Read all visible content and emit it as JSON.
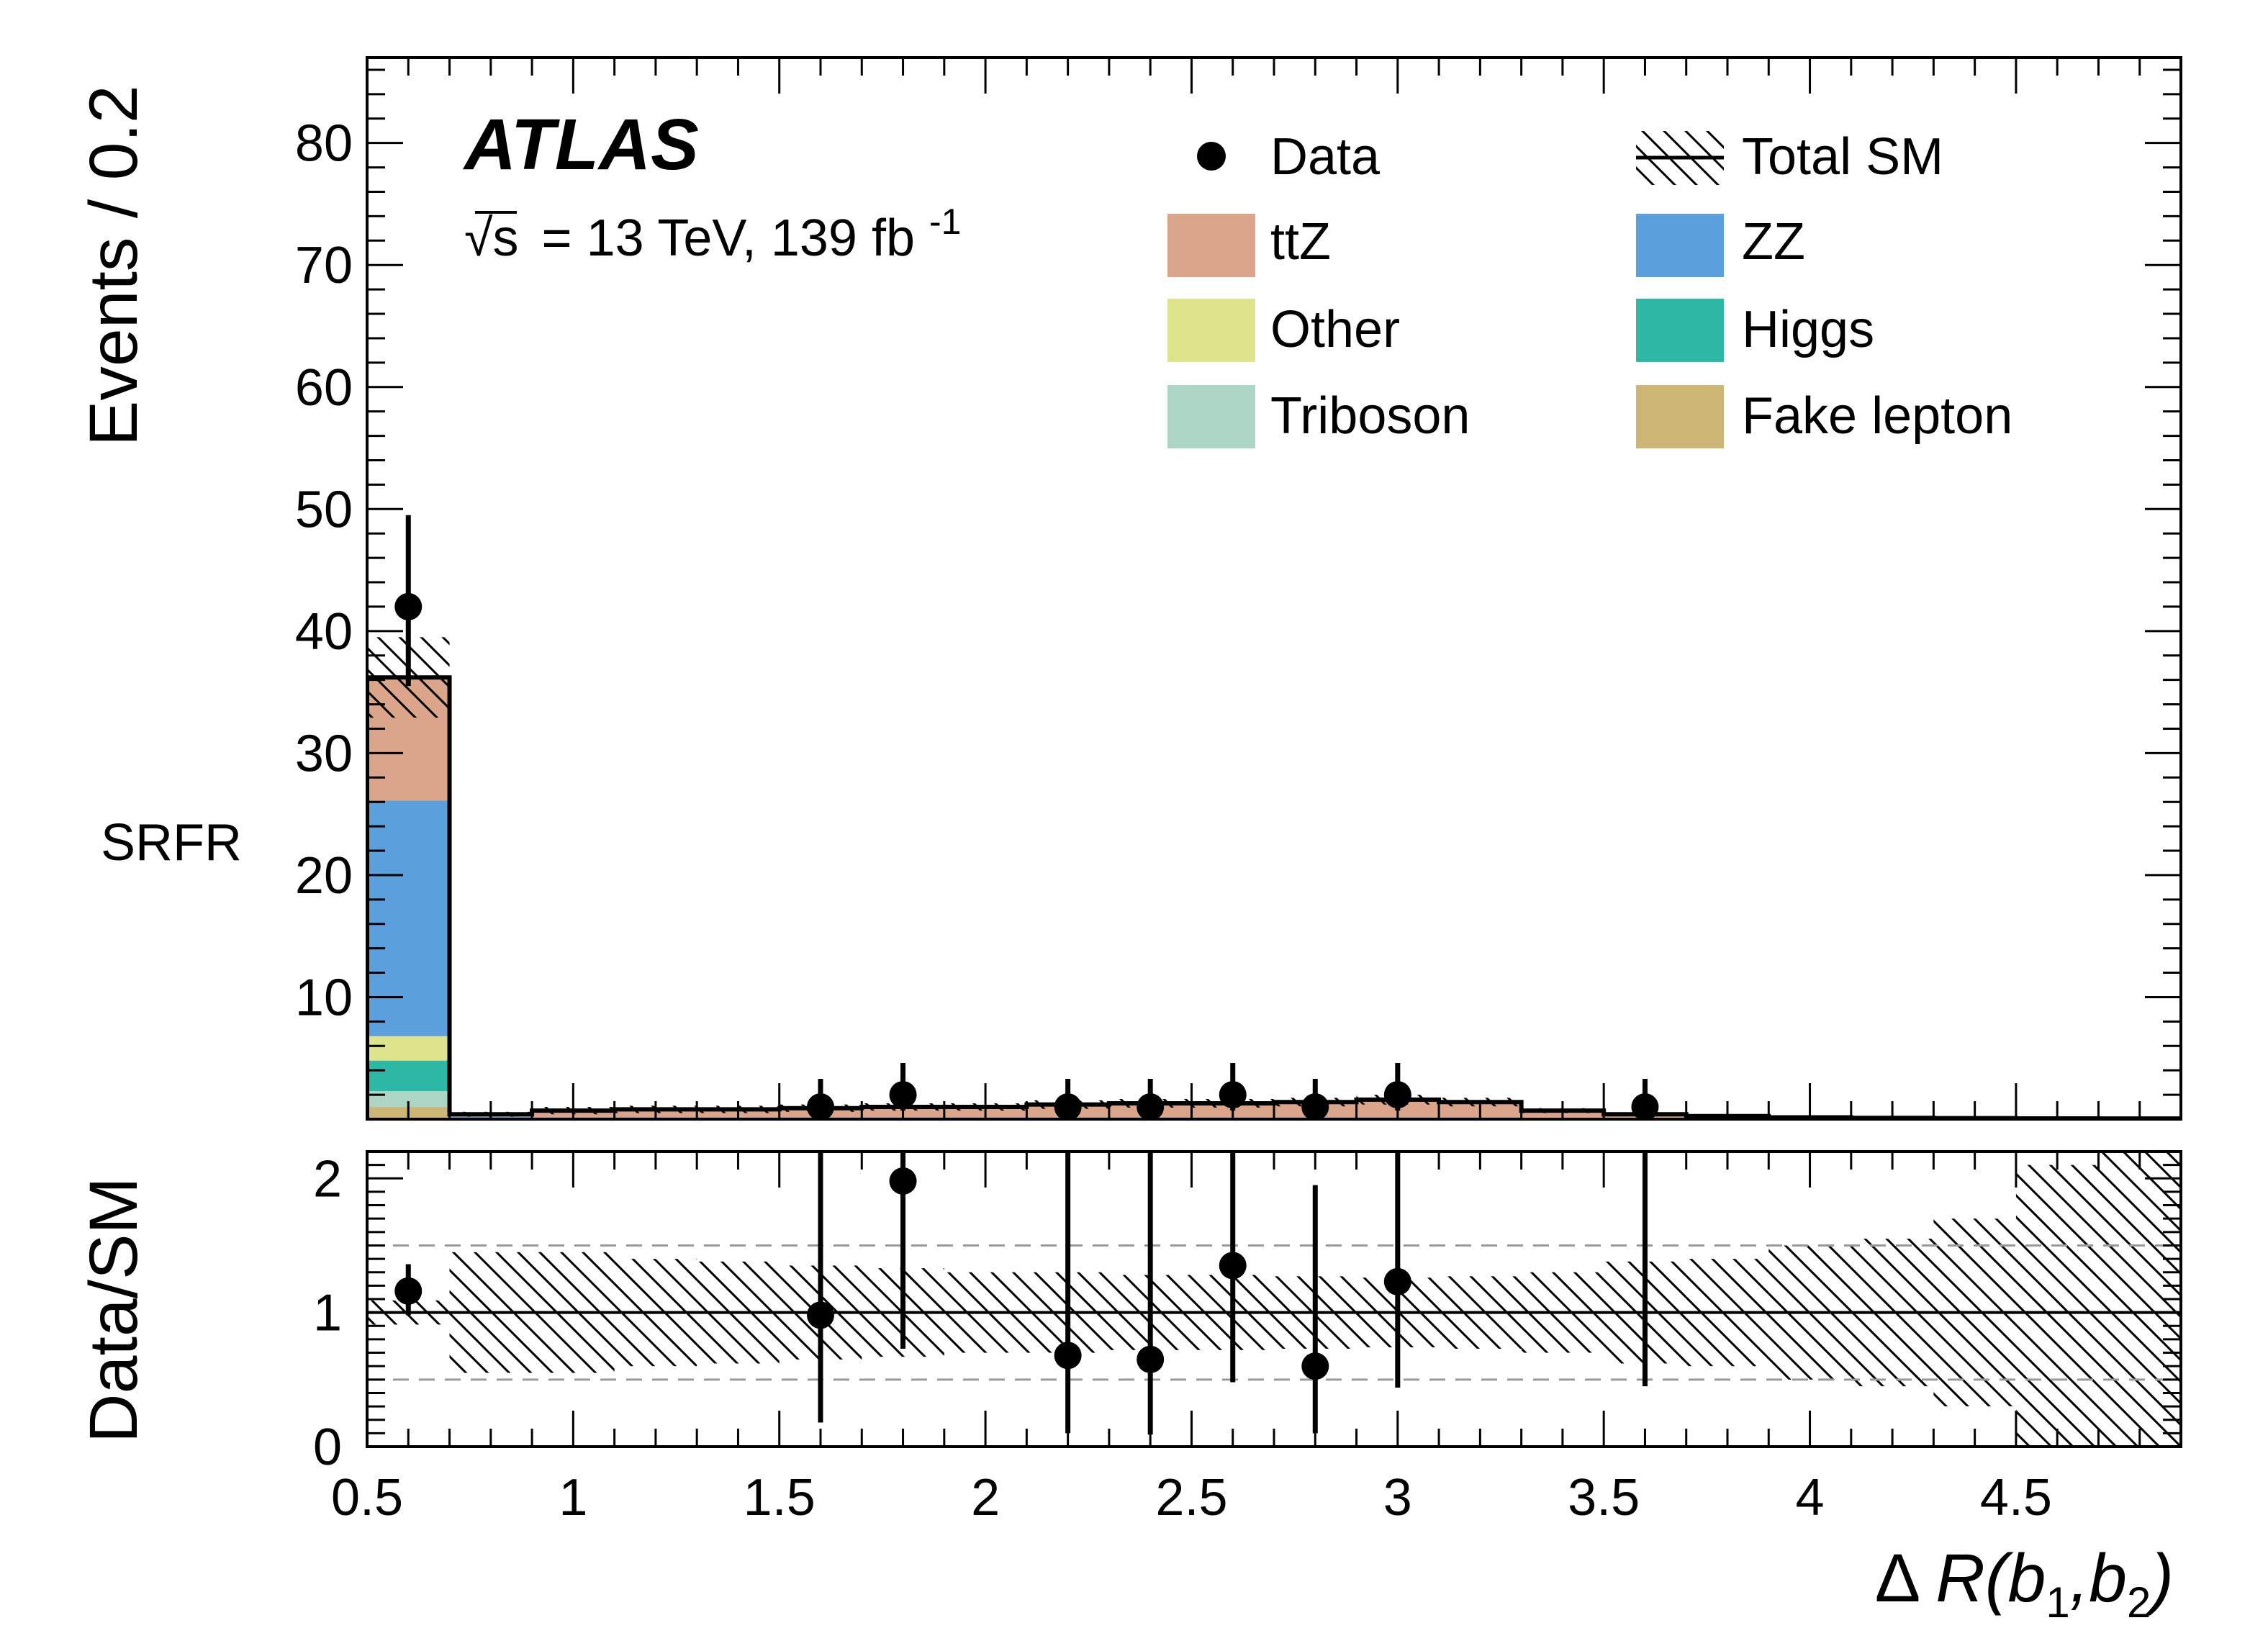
{
  "figure": {
    "atlas_label": "ATLAS",
    "energy_label_sqrt": "√s",
    "energy_label_rest": "= 13 TeV, 139 fb",
    "energy_label_sup": "-1",
    "region_label": "SRFR"
  },
  "colors": {
    "ttZ": "#dba58c",
    "ZZ": "#5b9fdc",
    "Other": "#dde48c",
    "Higgs": "#2eb8a6",
    "Triboson": "#acd5c5",
    "Fake lepton": "#cdb575",
    "axis": "#000000",
    "dashed_ref": "#9a9a9a"
  },
  "legend": {
    "entries": [
      {
        "label": "Data",
        "kind": "marker"
      },
      {
        "label": "Total SM",
        "kind": "hatch"
      },
      {
        "label": "ttZ",
        "kind": "fill",
        "color": "#dba58c"
      },
      {
        "label": "ZZ",
        "kind": "fill",
        "color": "#5b9fdc"
      },
      {
        "label": "Other",
        "kind": "fill",
        "color": "#dde48c"
      },
      {
        "label": "Higgs",
        "kind": "fill",
        "color": "#2eb8a6"
      },
      {
        "label": "Triboson",
        "kind": "fill",
        "color": "#acd5c5"
      },
      {
        "label": "Fake lepton",
        "kind": "fill",
        "color": "#cdb575"
      }
    ]
  },
  "chart_data": [
    {
      "type": "bar",
      "panel": "main",
      "stacked": true,
      "ylabel": "Events / 0.2",
      "xlim": [
        0.5,
        4.9
      ],
      "ylim": [
        0,
        87
      ],
      "yticks": [
        10,
        20,
        30,
        40,
        50,
        60,
        70,
        80
      ],
      "bin_edges": [
        0.5,
        0.7,
        0.9,
        1.1,
        1.3,
        1.5,
        1.7,
        1.9,
        2.1,
        2.3,
        2.5,
        2.7,
        2.9,
        3.1,
        3.3,
        3.5,
        3.7,
        3.9,
        4.1,
        4.3,
        4.5,
        4.7,
        4.9
      ],
      "series": [
        {
          "name": "Fake lepton",
          "values": [
            1.0,
            0,
            0,
            0,
            0,
            0,
            0,
            0,
            0,
            0,
            0,
            0,
            0,
            0,
            0,
            0,
            0,
            0,
            0,
            0,
            0,
            0
          ]
        },
        {
          "name": "Triboson",
          "values": [
            1.3,
            0,
            0,
            0,
            0,
            0,
            0,
            0,
            0,
            0,
            0,
            0,
            0,
            0,
            0,
            0,
            0,
            0,
            0,
            0,
            0,
            0
          ]
        },
        {
          "name": "Higgs",
          "values": [
            2.5,
            0.05,
            0.05,
            0.05,
            0.05,
            0.05,
            0.05,
            0.05,
            0.05,
            0.05,
            0.05,
            0.05,
            0.05,
            0.05,
            0.03,
            0.02,
            0.01,
            0.01,
            0,
            0,
            0,
            0
          ]
        },
        {
          "name": "Other",
          "values": [
            2.0,
            0.05,
            0.05,
            0.05,
            0.05,
            0.05,
            0.05,
            0.05,
            0.05,
            0.05,
            0.05,
            0.05,
            0.05,
            0.05,
            0.03,
            0.02,
            0.01,
            0.01,
            0,
            0,
            0,
            0
          ]
        },
        {
          "name": "ZZ",
          "values": [
            19.3,
            0.1,
            0.05,
            0.05,
            0.05,
            0.05,
            0.05,
            0.05,
            0.05,
            0.05,
            0.05,
            0.05,
            0.05,
            0.05,
            0.03,
            0.02,
            0.01,
            0.01,
            0,
            0,
            0,
            0
          ]
        },
        {
          "name": "ttZ",
          "values": [
            10.1,
            0.2,
            0.5,
            0.6,
            0.6,
            0.7,
            0.8,
            0.8,
            1.0,
            1.1,
            1.1,
            1.2,
            1.4,
            1.2,
            0.6,
            0.3,
            0.2,
            0.1,
            0.05,
            0.05,
            0.05,
            0.05
          ]
        }
      ],
      "total_sm": [
        36.2,
        0.4,
        0.7,
        0.8,
        0.8,
        0.9,
        1.0,
        1.0,
        1.2,
        1.3,
        1.3,
        1.4,
        1.6,
        1.4,
        0.7,
        0.4,
        0.25,
        0.15,
        0.1,
        0.08,
        0.06,
        0.05
      ],
      "total_sm_uncertainty": [
        3.3,
        0.2,
        0.3,
        0.3,
        0.3,
        0.3,
        0.3,
        0.3,
        0.35,
        0.35,
        0.35,
        0.35,
        0.4,
        0.35,
        0.2,
        0.15,
        0.1,
        0.08,
        0.08,
        0.08,
        0.06,
        0.05
      ],
      "data": {
        "x": [
          0.6,
          1.6,
          1.8,
          2.2,
          2.4,
          2.6,
          2.8,
          3.0,
          3.6
        ],
        "y": [
          42,
          1,
          2,
          1,
          1,
          2,
          1,
          2,
          1
        ],
        "err_up": [
          7.5,
          2.3,
          2.6,
          2.3,
          2.3,
          2.6,
          2.3,
          2.6,
          2.3
        ],
        "err_down": [
          6.5,
          0.8,
          1.3,
          0.8,
          0.8,
          1.3,
          0.8,
          1.3,
          0.8
        ]
      }
    },
    {
      "type": "scatter",
      "panel": "ratio",
      "ylabel": "Data/SM",
      "xlabel": "Δ R(b1,b2)",
      "xlim": [
        0.5,
        4.9
      ],
      "ylim": [
        0,
        2.2
      ],
      "yticks": [
        0,
        1,
        2
      ],
      "xticks": [
        0.5,
        1,
        1.5,
        2,
        2.5,
        3,
        3.5,
        4,
        4.5
      ],
      "reference_lines": [
        0.5,
        1,
        1.5
      ],
      "band_halfwidth": [
        0.09,
        0.45,
        0.45,
        0.4,
        0.38,
        0.35,
        0.33,
        0.3,
        0.3,
        0.28,
        0.28,
        0.27,
        0.26,
        0.27,
        0.3,
        0.38,
        0.4,
        0.5,
        0.55,
        0.7,
        1.1,
        1.3
      ],
      "points": {
        "x": [
          0.6,
          1.6,
          1.8,
          2.2,
          2.4,
          2.6,
          2.8,
          3.0,
          3.6
        ],
        "y": [
          1.16,
          0.98,
          1.98,
          0.68,
          0.65,
          1.35,
          0.6,
          1.23,
          1.6
        ],
        "err_up": [
          0.2,
          1.3,
          0.25,
          1.6,
          1.6,
          0.9,
          1.35,
          1.0,
          0.6
        ],
        "err_down": [
          0.18,
          0.8,
          1.25,
          0.58,
          0.56,
          0.87,
          0.5,
          0.79,
          1.15
        ],
        "visible": [
          true,
          true,
          true,
          true,
          true,
          true,
          true,
          true,
          false
        ]
      }
    }
  ]
}
